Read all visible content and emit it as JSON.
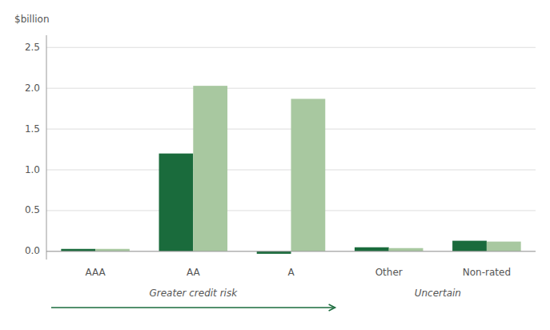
{
  "chart_data": {
    "type": "bar",
    "ylabel": "$billion",
    "categories": [
      "AAA",
      "AA",
      "A",
      "Other",
      "Non-rated"
    ],
    "series": [
      {
        "color": "#1a6b3c",
        "values": [
          0.03,
          1.2,
          -0.03,
          0.05,
          0.13
        ]
      },
      {
        "color": "#a8c8a0",
        "values": [
          0.03,
          2.03,
          1.87,
          0.04,
          0.12
        ]
      }
    ],
    "ylim": [
      -0.1,
      2.65
    ],
    "yticks": [
      {
        "value": 0.0,
        "label": "0.0"
      },
      0.5,
      {
        "value": 1.0,
        "label": "1.0"
      },
      1.5,
      {
        "value": 2.0,
        "label": "2.0"
      },
      2.5
    ],
    "grid": true,
    "groups": [
      {
        "label": "Greater credit risk",
        "categories": [
          "AAA",
          "AA",
          "A"
        ],
        "color": "#1a6b3c"
      },
      {
        "label": "Uncertain",
        "categories": [
          "Other",
          "Non-rated"
        ]
      }
    ]
  }
}
